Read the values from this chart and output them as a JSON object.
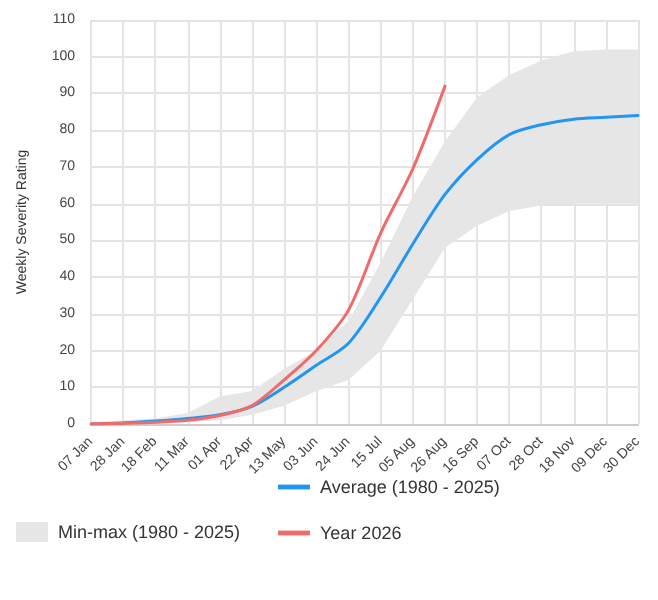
{
  "chart_data": {
    "type": "line",
    "ylabel": "Weekly Severity Rating",
    "categories": [
      "07 Jan",
      "28 Jan",
      "18 Feb",
      "11 Mar",
      "01 Apr",
      "22 Apr",
      "13 May",
      "03 Jun",
      "24 Jun",
      "15 Jul",
      "05 Aug",
      "26 Aug",
      "16 Sep",
      "07 Oct",
      "28 Oct",
      "18 Nov",
      "09 Dec",
      "30 Dec"
    ],
    "series": [
      {
        "name": "Average (1980 - 2025)",
        "color": "#2196f3",
        "values": [
          0,
          0.3,
          0.8,
          1.5,
          2.5,
          4.8,
          10,
          16,
          22,
          34.5,
          49,
          62.5,
          72,
          78.8,
          81.5,
          83,
          83.5,
          84
        ],
        "lower": [
          0,
          0,
          0.2,
          0.5,
          1,
          2.5,
          5,
          9,
          12,
          20,
          34,
          48,
          54,
          58,
          59.5,
          60,
          60,
          60
        ],
        "upper": [
          0.5,
          1,
          1.5,
          3,
          7.5,
          9,
          15,
          20,
          28,
          44,
          62,
          77,
          89,
          95,
          99,
          101.5,
          102,
          102
        ]
      },
      {
        "name": "Year 2026",
        "color": "#f26b6b",
        "values": [
          0,
          0.2,
          0.5,
          1,
          2.3,
          5,
          12,
          20,
          31,
          52,
          69.5,
          92,
          null,
          null,
          null,
          null,
          null,
          null
        ]
      }
    ],
    "annotations": [
      "Min-max (1980 - 2025)"
    ],
    "ylim": [
      0,
      110
    ],
    "yticks": [
      0,
      10,
      20,
      30,
      40,
      50,
      60,
      70,
      80,
      90,
      100,
      110
    ],
    "grid": true,
    "legend": "bottom",
    "marker": "none",
    "line_style": "solid"
  }
}
